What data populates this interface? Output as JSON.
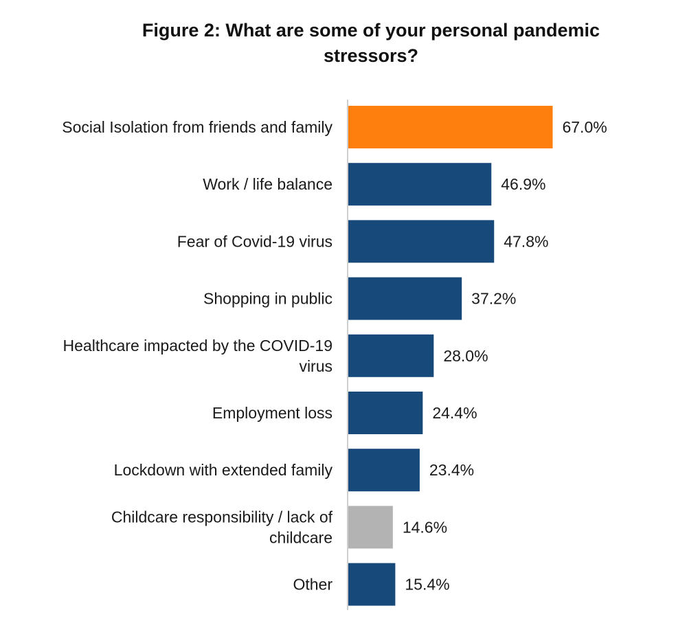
{
  "chart_data": {
    "type": "bar",
    "orientation": "horizontal",
    "title": "Figure 2: What are some of your personal pandemic\nstressors?",
    "categories": [
      "Social Isolation from friends and family",
      "Work / life balance",
      "Fear of Covid-19 virus",
      "Shopping in public",
      "Healthcare impacted by the COVID-19\nvirus",
      "Employment loss",
      "Lockdown with extended family",
      "Childcare responsibility / lack of\nchildcare",
      "Other"
    ],
    "values": [
      67.0,
      46.9,
      47.8,
      37.2,
      28.0,
      24.4,
      23.4,
      14.6,
      15.4
    ],
    "value_labels": [
      "67.0%",
      "46.9%",
      "47.8%",
      "37.2%",
      "28.0%",
      "24.4%",
      "23.4%",
      "14.6%",
      "15.4%"
    ],
    "bar_colors": [
      "#ff7f0e",
      "#17497a",
      "#17497a",
      "#17497a",
      "#17497a",
      "#17497a",
      "#17497a",
      "#b3b3b3",
      "#17497a"
    ],
    "xlim": [
      0,
      100
    ],
    "grid": false,
    "legend": "none"
  }
}
